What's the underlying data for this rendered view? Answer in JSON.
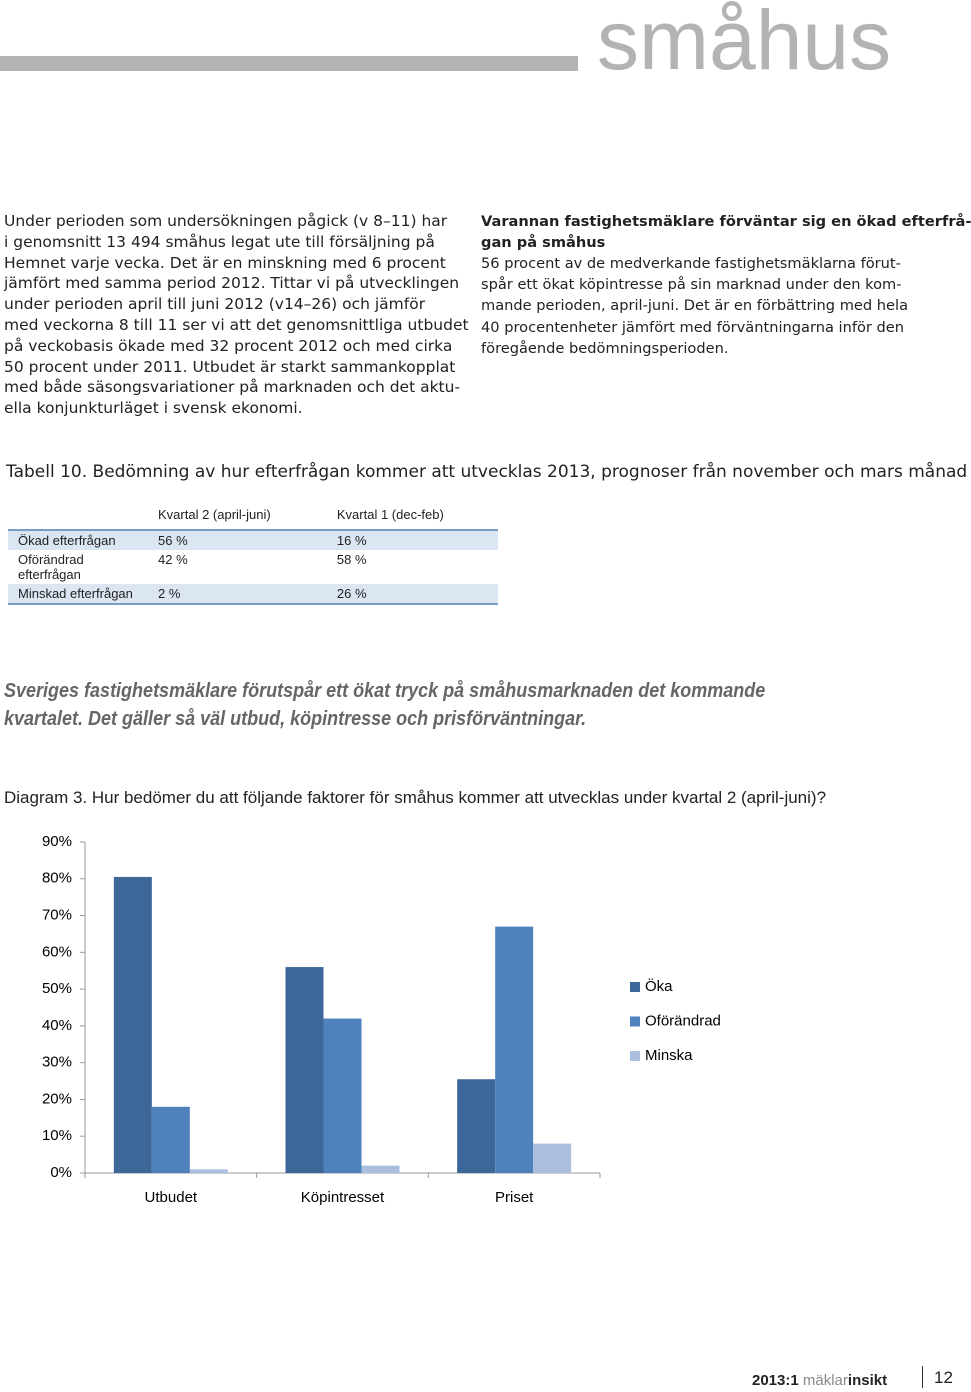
{
  "header": {
    "title": "småhus"
  },
  "left_column": {
    "lines": [
      "Under perioden som undersökningen pågick (v 8–11) har",
      "i genomsnitt 13 494 småhus legat ute till försäljning på",
      "Hemnet varje vecka. Det är en minskning med 6 procent",
      "jämfört med samma period 2012. Tittar vi på utvecklingen",
      "under perioden april till juni 2012 (v14–26) och jämför",
      "med veckorna 8 till 11 ser vi att det genomsnittliga utbudet",
      "på veckobasis ökade med 32 procent 2012 och med cirka",
      "50 procent under 2011. Utbudet är starkt sammankopplat",
      "med både säsongsvariationer på marknaden och det aktu-",
      "ella konjunkturläget i svensk ekonomi."
    ]
  },
  "right_column": {
    "heading_lines": [
      "Varannan fastighetsmäklare förväntar sig en ökad efterfrå-",
      "gan på småhus"
    ],
    "lines": [
      "56 procent av de medverkande fastighetsmäklarna förut-",
      "spår ett ökat köpintresse på sin marknad under den kom-",
      "mande perioden, april-juni. Det är en förbättring med hela",
      "40 procentenheter jämfört med förväntningarna inför den",
      "föregående bedömningsperioden."
    ]
  },
  "table": {
    "caption": "Tabell 10. Bedömning av hur efterfrågan kommer att utvecklas 2013, prognoser från november och mars månad",
    "headers": [
      "Kvartal 2 (april-juni)",
      "Kvartal 1 (dec-feb)"
    ],
    "rows": [
      [
        "Ökad efterfrågan",
        "56 %",
        "16 %"
      ],
      [
        "Oförändrad efterfrågan",
        "42 %",
        "58 %"
      ],
      [
        "Minskad efterfrågan",
        "2 %",
        "26 %"
      ]
    ]
  },
  "highlight": {
    "lines": [
      "Sveriges fastighetsmäklare förutspår ett ökat tryck på småhusmarknaden det kommande",
      "kvartalet. Det gäller så väl utbud, köpintresse och prisförväntningar."
    ]
  },
  "chart_data": {
    "type": "bar",
    "title": "Diagram 3. Hur bedömer du att följande faktorer för småhus kommer att utvecklas under kvartal 2 (april-juni)?",
    "categories": [
      "Utbudet",
      "Köpintresset",
      "Priset"
    ],
    "series": [
      {
        "name": "Öka",
        "color": "#3d6799",
        "values": [
          80.5,
          56,
          25.5
        ]
      },
      {
        "name": "Oförändrad",
        "color": "#4f81bd",
        "values": [
          18,
          42,
          67
        ]
      },
      {
        "name": "Minska",
        "color": "#aabfde",
        "values": [
          1,
          2,
          8
        ]
      }
    ],
    "ylim": [
      0,
      90
    ],
    "yticks": [
      {
        "value": 0,
        "label": "0%"
      },
      {
        "value": 10,
        "label": "10%"
      },
      {
        "value": 20,
        "label": "20%"
      },
      {
        "value": 30,
        "label": "30%"
      },
      {
        "value": 40,
        "label": "40%"
      },
      {
        "value": 50,
        "label": "50%"
      },
      {
        "value": 60,
        "label": "60%"
      },
      {
        "value": 70,
        "label": "70%"
      },
      {
        "value": 80,
        "label": "80%"
      },
      {
        "value": 90,
        "label": "90%"
      }
    ],
    "legend": "right"
  },
  "footer": {
    "issue": "2013:1",
    "brand_light": "mäklar",
    "brand_bold": "insikt",
    "page": "12"
  }
}
